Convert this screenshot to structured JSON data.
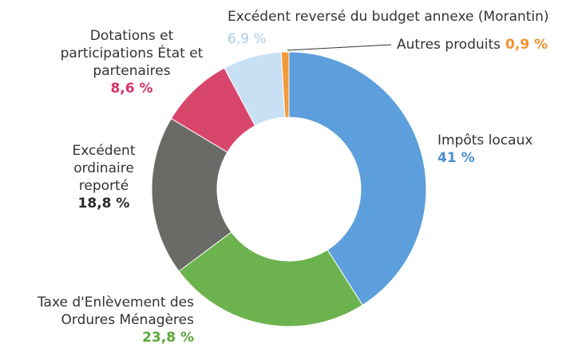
{
  "chart_data": {
    "type": "donut",
    "categories": [
      "Impôts locaux",
      "Taxe d'Enlèvement des Ordures Ménagères",
      "Excédent ordinaire reporté",
      "Dotations et participations État et partenaires",
      "Excédent reversé du budget annexe (Morantin)",
      "Autres produits"
    ],
    "values": [
      41,
      23.8,
      18.8,
      8.6,
      6.9,
      0.9
    ],
    "value_labels": [
      "41 %",
      "23,8 %",
      "18,8 %",
      "8,6 %",
      "6,9 %",
      "0,9 %"
    ],
    "colors": [
      "#5c9fdc",
      "#6cb24e",
      "#6a6a66",
      "#d9466c",
      "#c8e0f4",
      "#f29a38"
    ],
    "label_colors": [
      "#4a90d0",
      "#5aa83a",
      "#2a2a2a",
      "#d6336c",
      "#a8cce8",
      "#f0922e"
    ]
  }
}
